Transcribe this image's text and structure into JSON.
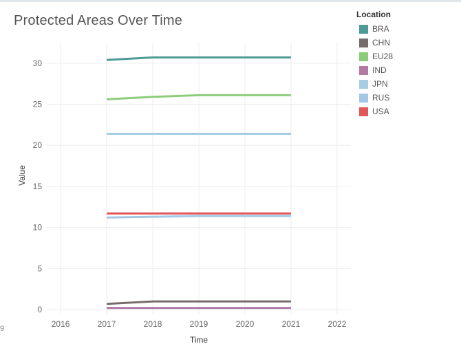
{
  "chart_data": {
    "type": "line",
    "title": "Protected Areas Over Time",
    "xlabel": "Time",
    "ylabel": "Value",
    "xlim": [
      2015.7,
      2022.3
    ],
    "ylim": [
      -0.5,
      32.5
    ],
    "xticks": [
      2016,
      2017,
      2018,
      2019,
      2020,
      2021,
      2022
    ],
    "yticks": [
      0,
      5,
      10,
      15,
      20,
      25,
      30
    ],
    "x": [
      2017,
      2018,
      2019,
      2020,
      2021
    ],
    "grid": true,
    "legend_title": "Location",
    "legend_position": "right",
    "series": [
      {
        "name": "BRA",
        "color": "#4e9a95",
        "values": [
          30.4,
          30.7,
          30.7,
          30.7,
          30.7
        ]
      },
      {
        "name": "CHN",
        "color": "#766c6b",
        "values": [
          0.7,
          1.0,
          1.0,
          1.0,
          1.0
        ]
      },
      {
        "name": "EU28",
        "color": "#8ccd7b",
        "values": [
          25.6,
          25.9,
          26.1,
          26.1,
          26.1
        ]
      },
      {
        "name": "IND",
        "color": "#b37aa6",
        "values": [
          0.2,
          0.2,
          0.2,
          0.2,
          0.2
        ]
      },
      {
        "name": "JPN",
        "color": "#a7cde2",
        "values": [
          21.4,
          21.4,
          21.4,
          21.4,
          21.4
        ]
      },
      {
        "name": "RUS",
        "color": "#a2c8e8",
        "values": [
          11.2,
          11.3,
          11.4,
          11.4,
          11.4
        ]
      },
      {
        "name": "USA",
        "color": "#e15659",
        "values": [
          11.7,
          11.7,
          11.7,
          11.7,
          11.7
        ]
      }
    ]
  },
  "stray_text": "9"
}
